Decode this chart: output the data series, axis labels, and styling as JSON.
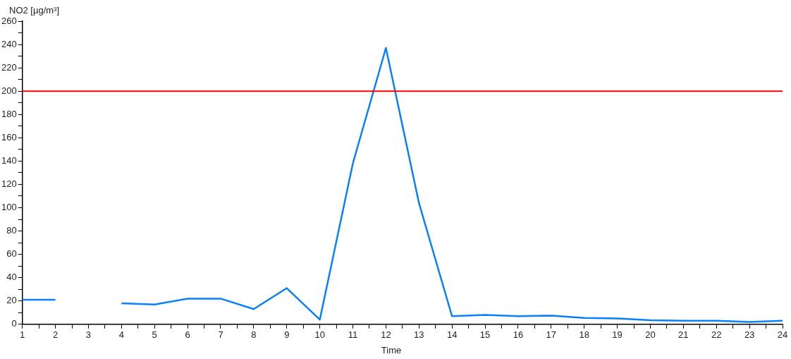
{
  "chart_data": {
    "type": "line",
    "xlabel": "Time",
    "ylabel": "NO2 [µg/m³]",
    "x": [
      1,
      2,
      3,
      4,
      5,
      6,
      7,
      8,
      9,
      10,
      11,
      12,
      13,
      14,
      15,
      16,
      17,
      18,
      19,
      20,
      21,
      22,
      23,
      24
    ],
    "series": [
      {
        "color": "#0a80ff",
        "values": [
          21,
          21,
          null,
          18,
          17,
          22,
          22,
          13,
          31,
          4,
          138,
          237,
          104,
          7,
          8,
          7,
          7.5,
          5.5,
          5,
          3.5,
          3,
          3,
          2,
          3
        ]
      }
    ],
    "xlim": [
      1,
      24
    ],
    "xticks": [
      1,
      {
        "value": 1.5,
        "label": null
      },
      2,
      {
        "value": 2.5,
        "label": null
      },
      3,
      {
        "value": 3.5,
        "label": null
      },
      4,
      {
        "value": 4.5,
        "label": null
      },
      5,
      {
        "value": 5.5,
        "label": null
      },
      6,
      {
        "value": 6.5,
        "label": null
      },
      7,
      {
        "value": 7.5,
        "label": null
      },
      8,
      {
        "value": 8.5,
        "label": null
      },
      9,
      {
        "value": 9.5,
        "label": null
      },
      10,
      {
        "value": 10.5,
        "label": null
      },
      11,
      {
        "value": 11.5,
        "label": null
      },
      12,
      {
        "value": 12.5,
        "label": null
      },
      13,
      {
        "value": 13.5,
        "label": null
      },
      14,
      {
        "value": 14.5,
        "label": null
      },
      15,
      {
        "value": 15.5,
        "label": null
      },
      16,
      {
        "value": 16.5,
        "label": null
      },
      17,
      {
        "value": 17.5,
        "label": null
      },
      18,
      {
        "value": 18.5,
        "label": null
      },
      19,
      {
        "value": 19.5,
        "label": null
      },
      20,
      {
        "value": 20.5,
        "label": null
      },
      21,
      {
        "value": 21.5,
        "label": null
      },
      22,
      {
        "value": 22.5,
        "label": null
      },
      23,
      {
        "value": 23.5,
        "label": null
      },
      24
    ],
    "ylim": [
      0,
      260
    ],
    "yticks": [
      0,
      {
        "value": 10,
        "label": null
      },
      20,
      {
        "value": 30,
        "label": null
      },
      40,
      {
        "value": 50,
        "label": null
      },
      60,
      {
        "value": 70,
        "label": null
      },
      80,
      {
        "value": 90,
        "label": null
      },
      100,
      {
        "value": 110,
        "label": null
      },
      120,
      {
        "value": 130,
        "label": null
      },
      140,
      {
        "value": 150,
        "label": null
      },
      160,
      {
        "value": 170,
        "label": null
      },
      180,
      {
        "value": 190,
        "label": null
      },
      200,
      {
        "value": 210,
        "label": null
      },
      220,
      {
        "value": 230,
        "label": null
      },
      240,
      {
        "value": 250,
        "label": null
      },
      260
    ],
    "ref_lines": [
      {
        "axis": "y",
        "value": 200,
        "color": "#ff0000"
      }
    ],
    "grid": false,
    "legend": false,
    "marker": "none",
    "line_style": "solid"
  }
}
